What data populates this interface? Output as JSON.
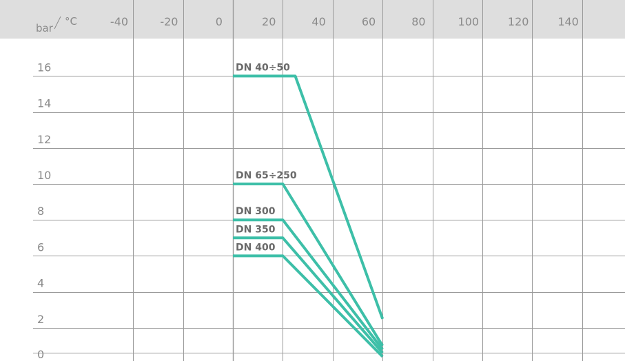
{
  "chart_data": {
    "type": "line",
    "title": "",
    "xlabel": "°C",
    "ylabel": "bar",
    "x_ticks": [
      "-40",
      "-20",
      "0",
      "20",
      "40",
      "60",
      "80",
      "100",
      "120",
      "140"
    ],
    "y_ticks": [
      "16",
      "14",
      "12",
      "10",
      "8",
      "6",
      "4",
      "2",
      "0"
    ],
    "xlim": [
      -60,
      160
    ],
    "ylim": [
      0,
      18
    ],
    "grid": true,
    "colors": {
      "line": "#3dbfa8",
      "header_band": "#dedede",
      "grid": "#9a9a9a",
      "tick_text": "#8a8a8a",
      "label_text": "#6a6a6a"
    },
    "series": [
      {
        "name": "DN 40÷50",
        "x": [
          0,
          25,
          60
        ],
        "y": [
          16,
          16,
          2.5
        ]
      },
      {
        "name": "DN 65÷250",
        "x": [
          0,
          20,
          60
        ],
        "y": [
          10,
          10,
          1
        ]
      },
      {
        "name": "DN 300",
        "x": [
          0,
          20,
          60
        ],
        "y": [
          8,
          8,
          0.8
        ]
      },
      {
        "name": "DN 350",
        "x": [
          0,
          20,
          60
        ],
        "y": [
          7,
          7,
          0.6
        ]
      },
      {
        "name": "DN 400",
        "x": [
          0,
          20,
          60
        ],
        "y": [
          6,
          6,
          0.4
        ]
      }
    ]
  }
}
